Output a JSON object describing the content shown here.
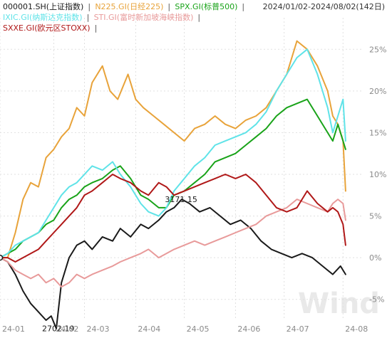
{
  "date_range_label": "2024/01/02-2024/08/02(142日)",
  "watermark": "Wind",
  "colors": {
    "background": "#ffffff",
    "grid": "#e0e0e0",
    "axis_text": "#8a8a8a"
  },
  "chart_data": {
    "type": "line",
    "xlim": [
      0,
      142
    ],
    "ylim": [
      -0.075,
      0.275
    ],
    "x_ticks": [
      {
        "pos": 0,
        "label": "24-01"
      },
      {
        "pos": 21,
        "label": "24-02"
      },
      {
        "pos": 33,
        "label": "24-03"
      },
      {
        "pos": 53,
        "label": "24-04"
      },
      {
        "pos": 72,
        "label": "24-05"
      },
      {
        "pos": 92,
        "label": "24-06"
      },
      {
        "pos": 111,
        "label": "24-07"
      },
      {
        "pos": 134,
        "label": "24-08"
      }
    ],
    "y_ticks": [
      {
        "value": 0.25,
        "label": "25%"
      },
      {
        "value": 0.2,
        "label": "20%"
      },
      {
        "value": 0.15,
        "label": "15%"
      },
      {
        "value": 0.1,
        "label": "10%"
      },
      {
        "value": 0.05,
        "label": "5%"
      },
      {
        "value": 0.0,
        "label": "0%"
      },
      {
        "value": -0.05,
        "label": "-5%"
      }
    ],
    "annotations": [
      {
        "text": "2702.19",
        "x": 22,
        "y": -0.085
      },
      {
        "text": "3171.15",
        "x": 70,
        "y": 0.07
      }
    ],
    "legend": [
      [
        {
          "label": "000001.SH(上证指数)",
          "color": "#1a1a1a"
        },
        {
          "label": "N225.GI(日经225)",
          "color": "#e8a33a"
        },
        {
          "label": "SPX.GI(标普500)",
          "color": "#19a319"
        }
      ],
      [
        {
          "label": "IXIC.GI(纳斯达克指数)",
          "color": "#5fe3e8"
        },
        {
          "label": "STI.GI(富时新加坡海峡指数)",
          "color": "#e89a9a"
        }
      ],
      [
        {
          "label": "SXXE.GI(欧元区STOXX)",
          "color": "#b01818"
        }
      ]
    ],
    "series": [
      {
        "name": "000001.SH(上证指数)",
        "color": "#1a1a1a",
        "points": [
          [
            0,
            0
          ],
          [
            3,
            -0.005
          ],
          [
            6,
            -0.02
          ],
          [
            9,
            -0.04
          ],
          [
            12,
            -0.055
          ],
          [
            15,
            -0.065
          ],
          [
            18,
            -0.075
          ],
          [
            20,
            -0.07
          ],
          [
            22,
            -0.085
          ],
          [
            24,
            -0.03
          ],
          [
            27,
            0.0
          ],
          [
            30,
            0.015
          ],
          [
            33,
            0.02
          ],
          [
            36,
            0.01
          ],
          [
            40,
            0.025
          ],
          [
            44,
            0.02
          ],
          [
            47,
            0.035
          ],
          [
            51,
            0.025
          ],
          [
            55,
            0.04
          ],
          [
            58,
            0.035
          ],
          [
            62,
            0.045
          ],
          [
            65,
            0.055
          ],
          [
            68,
            0.06
          ],
          [
            71,
            0.07
          ],
          [
            74,
            0.065
          ],
          [
            78,
            0.055
          ],
          [
            82,
            0.06
          ],
          [
            86,
            0.05
          ],
          [
            90,
            0.04
          ],
          [
            94,
            0.045
          ],
          [
            98,
            0.035
          ],
          [
            102,
            0.02
          ],
          [
            106,
            0.01
          ],
          [
            110,
            0.005
          ],
          [
            114,
            0.0
          ],
          [
            118,
            0.005
          ],
          [
            122,
            0.0
          ],
          [
            126,
            -0.01
          ],
          [
            130,
            -0.02
          ],
          [
            133,
            -0.01
          ],
          [
            135,
            -0.02
          ]
        ]
      },
      {
        "name": "N225.GI(日经225)",
        "color": "#e8a33a",
        "points": [
          [
            0,
            0
          ],
          [
            3,
            0.0
          ],
          [
            6,
            0.03
          ],
          [
            9,
            0.07
          ],
          [
            12,
            0.09
          ],
          [
            15,
            0.085
          ],
          [
            18,
            0.12
          ],
          [
            21,
            0.13
          ],
          [
            24,
            0.145
          ],
          [
            27,
            0.155
          ],
          [
            30,
            0.18
          ],
          [
            33,
            0.17
          ],
          [
            36,
            0.21
          ],
          [
            40,
            0.23
          ],
          [
            43,
            0.2
          ],
          [
            46,
            0.19
          ],
          [
            50,
            0.22
          ],
          [
            53,
            0.19
          ],
          [
            56,
            0.18
          ],
          [
            60,
            0.17
          ],
          [
            64,
            0.16
          ],
          [
            68,
            0.15
          ],
          [
            72,
            0.14
          ],
          [
            76,
            0.155
          ],
          [
            80,
            0.16
          ],
          [
            84,
            0.17
          ],
          [
            88,
            0.16
          ],
          [
            92,
            0.155
          ],
          [
            96,
            0.165
          ],
          [
            100,
            0.17
          ],
          [
            104,
            0.18
          ],
          [
            108,
            0.2
          ],
          [
            112,
            0.22
          ],
          [
            116,
            0.26
          ],
          [
            120,
            0.25
          ],
          [
            124,
            0.23
          ],
          [
            128,
            0.2
          ],
          [
            130,
            0.17
          ],
          [
            132,
            0.16
          ],
          [
            134,
            0.14
          ],
          [
            135,
            0.08
          ]
        ]
      },
      {
        "name": "SPX.GI(标普500)",
        "color": "#19a319",
        "points": [
          [
            0,
            0
          ],
          [
            3,
            0.005
          ],
          [
            6,
            0.01
          ],
          [
            9,
            0.02
          ],
          [
            12,
            0.025
          ],
          [
            15,
            0.03
          ],
          [
            18,
            0.04
          ],
          [
            21,
            0.045
          ],
          [
            24,
            0.06
          ],
          [
            27,
            0.07
          ],
          [
            30,
            0.075
          ],
          [
            33,
            0.085
          ],
          [
            36,
            0.09
          ],
          [
            40,
            0.095
          ],
          [
            44,
            0.105
          ],
          [
            47,
            0.11
          ],
          [
            51,
            0.095
          ],
          [
            55,
            0.075
          ],
          [
            58,
            0.07
          ],
          [
            62,
            0.06
          ],
          [
            65,
            0.06
          ],
          [
            68,
            0.075
          ],
          [
            72,
            0.08
          ],
          [
            76,
            0.09
          ],
          [
            80,
            0.1
          ],
          [
            84,
            0.115
          ],
          [
            88,
            0.12
          ],
          [
            92,
            0.125
          ],
          [
            96,
            0.135
          ],
          [
            100,
            0.145
          ],
          [
            104,
            0.155
          ],
          [
            108,
            0.17
          ],
          [
            112,
            0.18
          ],
          [
            116,
            0.185
          ],
          [
            120,
            0.19
          ],
          [
            124,
            0.17
          ],
          [
            128,
            0.15
          ],
          [
            130,
            0.14
          ],
          [
            132,
            0.16
          ],
          [
            134,
            0.14
          ],
          [
            135,
            0.13
          ]
        ]
      },
      {
        "name": "IXIC.GI(纳斯达克指数)",
        "color": "#5fe3e8",
        "points": [
          [
            0,
            0
          ],
          [
            3,
            0.005
          ],
          [
            6,
            0.015
          ],
          [
            9,
            0.02
          ],
          [
            12,
            0.025
          ],
          [
            15,
            0.03
          ],
          [
            18,
            0.045
          ],
          [
            21,
            0.06
          ],
          [
            24,
            0.075
          ],
          [
            27,
            0.085
          ],
          [
            30,
            0.09
          ],
          [
            33,
            0.1
          ],
          [
            36,
            0.11
          ],
          [
            40,
            0.105
          ],
          [
            44,
            0.115
          ],
          [
            47,
            0.1
          ],
          [
            51,
            0.085
          ],
          [
            55,
            0.065
          ],
          [
            58,
            0.055
          ],
          [
            62,
            0.05
          ],
          [
            65,
            0.06
          ],
          [
            68,
            0.08
          ],
          [
            72,
            0.095
          ],
          [
            76,
            0.11
          ],
          [
            80,
            0.12
          ],
          [
            84,
            0.135
          ],
          [
            88,
            0.14
          ],
          [
            92,
            0.145
          ],
          [
            96,
            0.15
          ],
          [
            100,
            0.16
          ],
          [
            104,
            0.175
          ],
          [
            108,
            0.2
          ],
          [
            112,
            0.22
          ],
          [
            116,
            0.24
          ],
          [
            120,
            0.25
          ],
          [
            124,
            0.22
          ],
          [
            128,
            0.18
          ],
          [
            130,
            0.15
          ],
          [
            132,
            0.17
          ],
          [
            134,
            0.19
          ],
          [
            135,
            0.14
          ]
        ]
      },
      {
        "name": "STI.GI(富时新加坡海峡指数)",
        "color": "#e89a9a",
        "points": [
          [
            0,
            0
          ],
          [
            3,
            -0.005
          ],
          [
            6,
            -0.015
          ],
          [
            9,
            -0.02
          ],
          [
            12,
            -0.025
          ],
          [
            15,
            -0.02
          ],
          [
            18,
            -0.03
          ],
          [
            21,
            -0.025
          ],
          [
            24,
            -0.035
          ],
          [
            27,
            -0.03
          ],
          [
            30,
            -0.02
          ],
          [
            33,
            -0.025
          ],
          [
            36,
            -0.02
          ],
          [
            40,
            -0.015
          ],
          [
            44,
            -0.01
          ],
          [
            47,
            -0.005
          ],
          [
            51,
            0.0
          ],
          [
            55,
            0.005
          ],
          [
            58,
            0.01
          ],
          [
            62,
            0.0
          ],
          [
            65,
            0.005
          ],
          [
            68,
            0.01
          ],
          [
            72,
            0.015
          ],
          [
            76,
            0.02
          ],
          [
            80,
            0.015
          ],
          [
            84,
            0.02
          ],
          [
            88,
            0.025
          ],
          [
            92,
            0.03
          ],
          [
            96,
            0.035
          ],
          [
            100,
            0.04
          ],
          [
            104,
            0.05
          ],
          [
            108,
            0.055
          ],
          [
            112,
            0.06
          ],
          [
            116,
            0.07
          ],
          [
            120,
            0.065
          ],
          [
            124,
            0.06
          ],
          [
            128,
            0.055
          ],
          [
            130,
            0.065
          ],
          [
            132,
            0.07
          ],
          [
            134,
            0.065
          ],
          [
            135,
            0.045
          ]
        ]
      },
      {
        "name": "SXXE.GI(欧元区STOXX)",
        "color": "#b01818",
        "points": [
          [
            0,
            0
          ],
          [
            3,
            0.0
          ],
          [
            6,
            -0.005
          ],
          [
            9,
            0.0
          ],
          [
            12,
            0.005
          ],
          [
            15,
            0.01
          ],
          [
            18,
            0.02
          ],
          [
            21,
            0.03
          ],
          [
            24,
            0.04
          ],
          [
            27,
            0.05
          ],
          [
            30,
            0.06
          ],
          [
            33,
            0.075
          ],
          [
            36,
            0.08
          ],
          [
            40,
            0.09
          ],
          [
            44,
            0.1
          ],
          [
            47,
            0.095
          ],
          [
            51,
            0.09
          ],
          [
            55,
            0.08
          ],
          [
            58,
            0.075
          ],
          [
            62,
            0.09
          ],
          [
            65,
            0.085
          ],
          [
            68,
            0.075
          ],
          [
            72,
            0.08
          ],
          [
            76,
            0.085
          ],
          [
            80,
            0.09
          ],
          [
            84,
            0.095
          ],
          [
            88,
            0.1
          ],
          [
            92,
            0.095
          ],
          [
            96,
            0.1
          ],
          [
            100,
            0.09
          ],
          [
            104,
            0.075
          ],
          [
            108,
            0.06
          ],
          [
            112,
            0.055
          ],
          [
            116,
            0.06
          ],
          [
            120,
            0.08
          ],
          [
            124,
            0.065
          ],
          [
            128,
            0.055
          ],
          [
            130,
            0.06
          ],
          [
            132,
            0.055
          ],
          [
            134,
            0.04
          ],
          [
            135,
            0.015
          ]
        ]
      }
    ]
  }
}
